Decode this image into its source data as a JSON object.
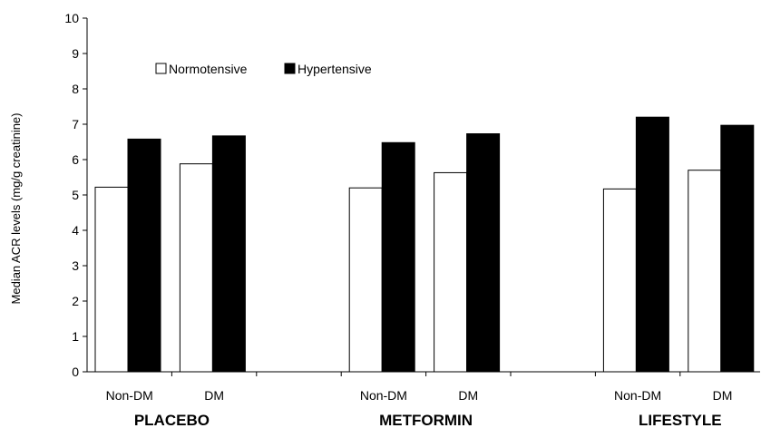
{
  "chart_data": {
    "type": "bar",
    "title": "",
    "ylabel": "Median ACR levels (mg/g creatinine)",
    "ylim": [
      0,
      10
    ],
    "yticks": [
      0,
      1,
      2,
      3,
      4,
      5,
      6,
      7,
      8,
      9,
      10
    ],
    "grid": false,
    "legend_position": "top-left",
    "groups": [
      {
        "label": "PLACEBO",
        "categories": [
          "Non-DM",
          "DM"
        ]
      },
      {
        "label": "METFORMIN",
        "categories": [
          "Non-DM",
          "DM"
        ]
      },
      {
        "label": "LIFESTYLE",
        "categories": [
          "Non-DM",
          "DM"
        ]
      }
    ],
    "categories": [
      "Non-DM",
      "DM",
      "Non-DM",
      "DM",
      "Non-DM",
      "DM"
    ],
    "series": [
      {
        "name": "Normotensive",
        "color": "#ffffff",
        "values": [
          5.22,
          5.88,
          5.2,
          5.63,
          5.17,
          5.7
        ]
      },
      {
        "name": "Hypertensive",
        "color": "#000000",
        "values": [
          6.58,
          6.67,
          6.48,
          6.73,
          7.2,
          6.97
        ]
      }
    ]
  }
}
